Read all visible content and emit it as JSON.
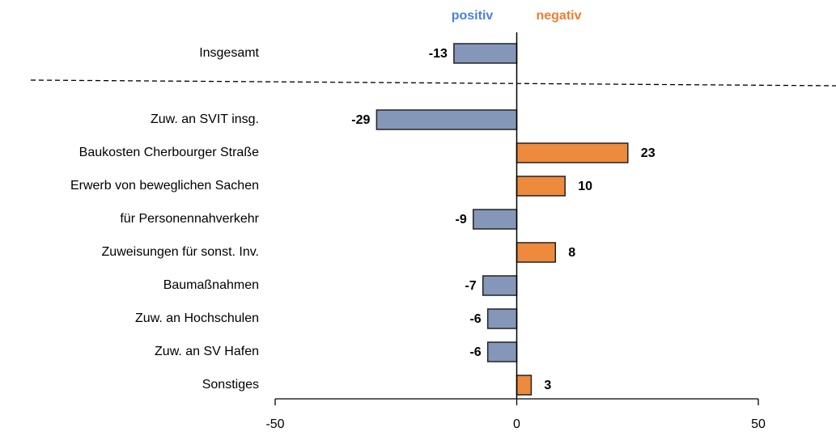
{
  "chart_data": {
    "type": "barh",
    "categories": [
      "Insgesamt",
      "Zuw. an SVIT insg.",
      "Baukosten Cherbourger Straße",
      "Erwerb von beweglichen Sachen",
      "für Personennahverkehr",
      "Zuweisungen für sonst. Inv.",
      "Baumaßnahmen",
      "Zuw. an Hochschulen",
      "Zuw. an SV Hafen",
      "Sonstiges"
    ],
    "values": [
      -13,
      -29,
      23,
      10,
      -9,
      8,
      -7,
      -6,
      -6,
      3
    ],
    "colors": [
      "#8597b8",
      "#8597b8",
      "#ee8a3c",
      "#ee8a3c",
      "#8597b8",
      "#ee8a3c",
      "#8597b8",
      "#8597b8",
      "#8597b8",
      "#ee8a3c"
    ],
    "legend": [
      {
        "name": "positiv",
        "color": "#4a7fe0"
      },
      {
        "name": "negativ",
        "color": "#ed7d31"
      }
    ],
    "xlim": [
      -50,
      50
    ],
    "xticks": [
      -50,
      0,
      50
    ]
  }
}
